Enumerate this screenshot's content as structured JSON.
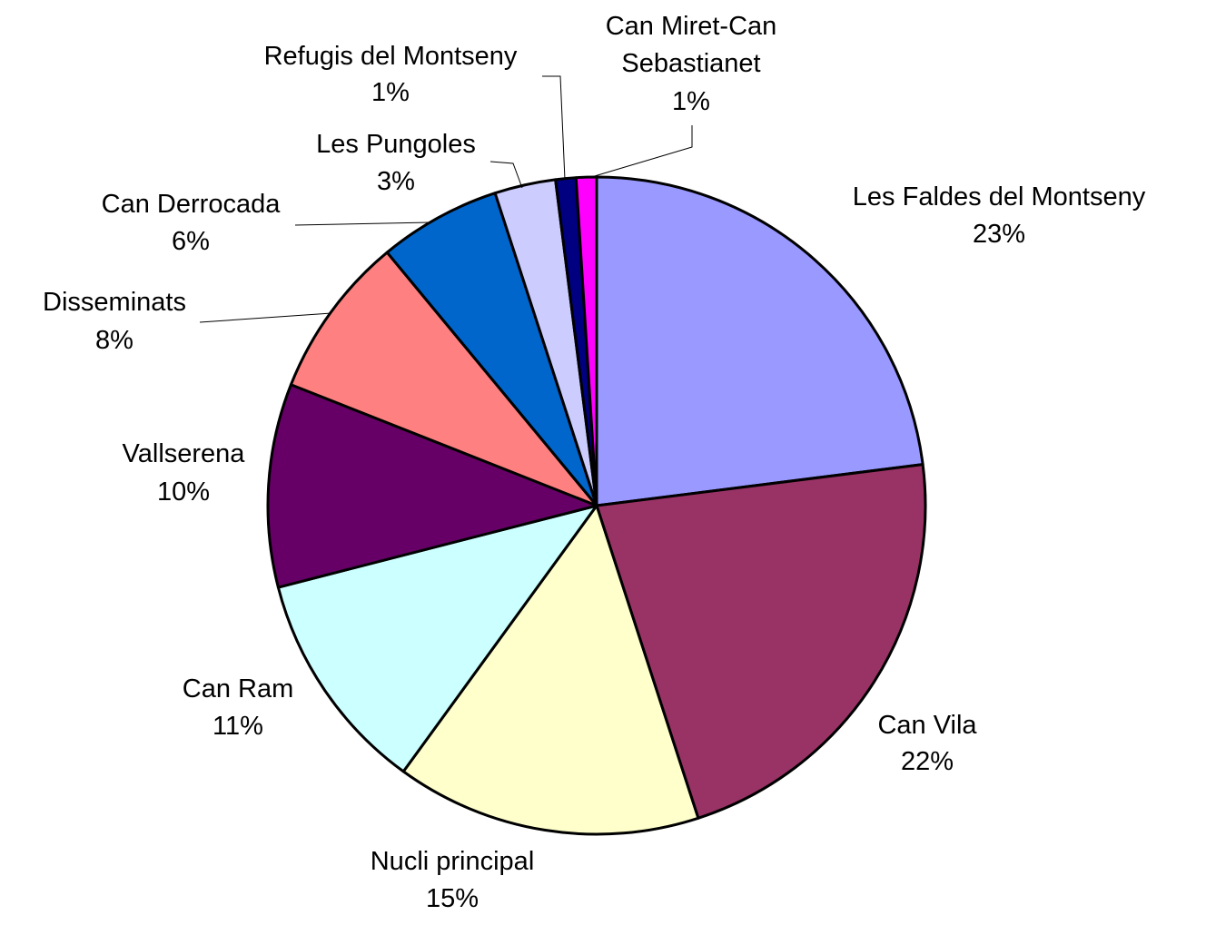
{
  "chart_data": {
    "type": "pie",
    "categories": [
      "Les Faldes del Montseny",
      "Can Vila",
      "Nucli principal",
      "Can Ram",
      "Vallserena",
      "Disseminats",
      "Can Derrocada",
      "Les Pungoles",
      "Refugis del Montseny",
      "Can Miret-Can Sebastianet"
    ],
    "values": [
      23,
      22,
      15,
      11,
      10,
      8,
      6,
      3,
      1,
      1
    ],
    "value_labels": [
      "23%",
      "22%",
      "15%",
      "11%",
      "10%",
      "8%",
      "6%",
      "3%",
      "1%",
      "1%"
    ],
    "colors": [
      "#9999ff",
      "#993366",
      "#ffffcc",
      "#ccffff",
      "#660066",
      "#ff8080",
      "#0066cc",
      "#ccccff",
      "#000080",
      "#ff00ff"
    ]
  }
}
